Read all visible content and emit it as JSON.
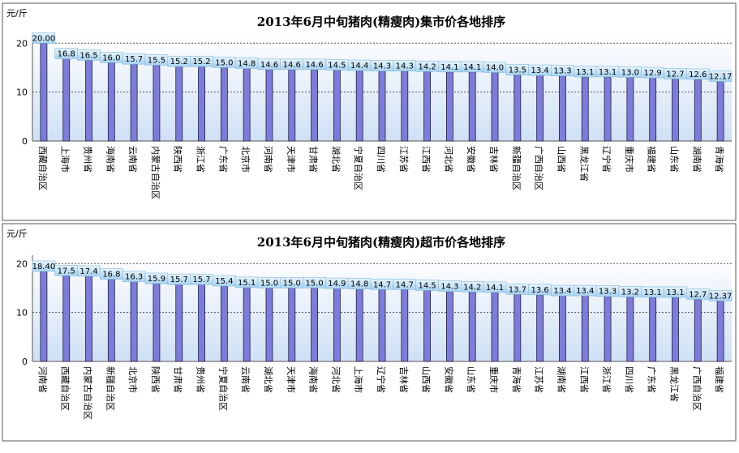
{
  "chart_data": [
    {
      "type": "bar",
      "title": "2013年6月中旬猪肉(精瘦肉)集市价各地排序",
      "y_label": "元/斤",
      "color": "#7c7ce0",
      "categories": [
        "西藏自治区",
        "上海市",
        "贵州省",
        "海南省",
        "云南省",
        "内蒙古自治区",
        "陕西省",
        "浙江省",
        "广东省",
        "北京市",
        "河南省",
        "天津市",
        "甘肃省",
        "湖北省",
        "宁夏自治区",
        "四川省",
        "江苏省",
        "江西省",
        "河北省",
        "安徽省",
        "吉林省",
        "新疆自治区",
        "广西自治区",
        "山西省",
        "黑龙江省",
        "辽宁省",
        "重庆市",
        "福建省",
        "山东省",
        "湖南省",
        "青海省"
      ],
      "values": [
        20,
        16.8,
        16.5,
        16.0,
        15.7,
        15.5,
        15.2,
        15.2,
        15.0,
        14.8,
        14.6,
        14.6,
        14.6,
        14.5,
        14.4,
        14.3,
        14.3,
        14.2,
        14.1,
        14.1,
        14.0,
        13.5,
        13.4,
        13.3,
        13.1,
        13.1,
        13.0,
        12.9,
        12.7,
        12.6,
        12.17
      ],
      "value_labels": [
        "20.00",
        "16.8",
        "16.5",
        "16.0",
        "15.7",
        "15.5",
        "15.2",
        "15.2",
        "15.0",
        "14.8",
        "14.6",
        "14.6",
        "14.6",
        "14.5",
        "14.4",
        "14.3",
        "14.3",
        "14.2",
        "14.1",
        "14.1",
        "14.0",
        "13.5",
        "13.4",
        "13.3",
        "13.1",
        "13.1",
        "13.0",
        "12.9",
        "12.7",
        "12.6",
        "12.17"
      ],
      "ylim": [
        0,
        21.7
      ],
      "yticks": [
        0,
        10,
        20
      ],
      "grid": true
    },
    {
      "type": "bar",
      "title": "2013年6月中旬猪肉(精瘦肉)超市价各地排序",
      "y_label": "元/斤",
      "color": "#7c7ce0",
      "categories": [
        "河南省",
        "西藏自治区",
        "内蒙古自治区",
        "新疆自治区",
        "北京市",
        "陕西省",
        "甘肃省",
        "贵州省",
        "宁夏自治区",
        "云南省",
        "湖北省",
        "天津市",
        "海南省",
        "河北省",
        "上海市",
        "辽宁省",
        "吉林省",
        "山西省",
        "安徽省",
        "山东省",
        "重庆市",
        "青海省",
        "江苏省",
        "湖南省",
        "江西省",
        "浙江省",
        "四川省",
        "广东省",
        "黑龙江省",
        "广西自治区",
        "福建省"
      ],
      "values": [
        18.4,
        17.5,
        17.4,
        16.8,
        16.3,
        15.9,
        15.7,
        15.7,
        15.4,
        15.1,
        15.0,
        15.0,
        15.0,
        14.9,
        14.8,
        14.7,
        14.7,
        14.5,
        14.3,
        14.2,
        14.1,
        13.7,
        13.6,
        13.4,
        13.4,
        13.3,
        13.2,
        13.1,
        13.1,
        12.7,
        12.37
      ],
      "value_labels": [
        "18.40",
        "17.5",
        "17.4",
        "16.8",
        "16.3",
        "15.9",
        "15.7",
        "15.7",
        "15.4",
        "15.1",
        "15.0",
        "15.0",
        "15.0",
        "14.9",
        "14.8",
        "14.7",
        "14.7",
        "14.5",
        "14.3",
        "14.2",
        "14.1",
        "13.7",
        "13.6",
        "13.4",
        "13.4",
        "13.3",
        "13.2",
        "13.1",
        "13.1",
        "12.7",
        "12.37"
      ],
      "ylim": [
        0,
        21.7
      ],
      "yticks": [
        0,
        10,
        20
      ],
      "grid": true
    }
  ]
}
